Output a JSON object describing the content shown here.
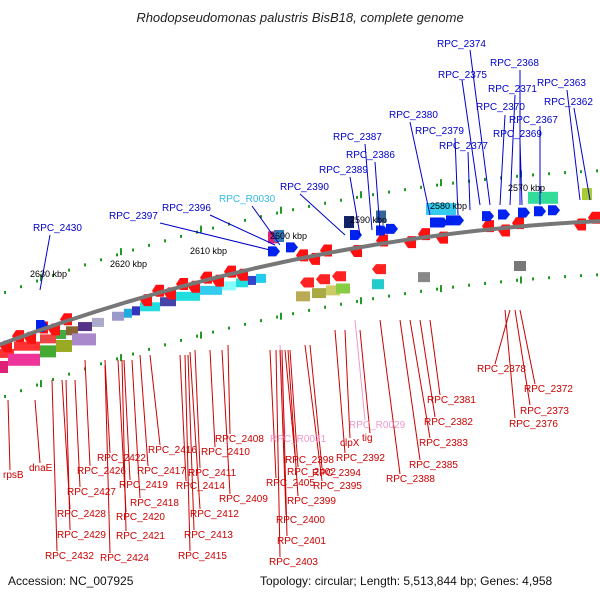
{
  "title": "Rhodopseudomonas palustris BisB18, complete genome",
  "footer": {
    "accession": "Accession: NC_007925",
    "stats": "Topology: circular; Length: 5,513,844 bp; Genes: 4,958"
  },
  "colors": {
    "forward_label": "#0000cc",
    "reverse_label": "#cc0000",
    "rna_label": "#33bbee",
    "pink_label": "#ee99cc",
    "backbone": "#777777",
    "tick": "#229922"
  },
  "kbp_ticks": [
    "2570 kbp",
    "2580 kbp",
    "2590 kbp",
    "2600 kbp",
    "2610 kbp",
    "2620 kbp",
    "2630 kbp"
  ],
  "labels_top": [
    "RPC_2374",
    "RPC_2368",
    "RPC_2375",
    "RPC_2363",
    "RPC_2371",
    "RPC_2362",
    "RPC_2370",
    "RPC_2367",
    "RPC_2380",
    "RPC_2379",
    "RPC_2369",
    "RPC_2387",
    "RPC_2377",
    "RPC_2386",
    "RPC_2389",
    "RPC_2390",
    "RPC_R0030",
    "RPC_2396",
    "RPC_2397",
    "RPC_2430"
  ],
  "labels_bottom": [
    "RPC_2378",
    "RPC_2372",
    "RPC_2373",
    "RPC_2376",
    "RPC_2381",
    "RPC_2382",
    "RPC_2383",
    "RPC_R0029",
    "RPC_2385",
    "tig",
    "clpX",
    "RPC_2392",
    "RPC_2388",
    "RPC_R0031",
    "RPC_2408",
    "RPC_2398",
    "RPC_2394",
    "RPC_2410",
    "RPC_2402",
    "RPC_2395",
    "RPC_2416",
    "RPC_2411",
    "RPC_2405",
    "RPC_2399",
    "RPC_2422",
    "RPC_2417",
    "RPC_2414",
    "RPC_2409",
    "RPC_2426",
    "RPC_2419",
    "RPC_2418",
    "RPC_2412",
    "RPC_2400",
    "rpsB",
    "dnaE",
    "RPC_2427",
    "RPC_2428",
    "RPC_2420",
    "RPC_2401",
    "RPC_2429",
    "RPC_2421",
    "RPC_2413",
    "RPC_2415",
    "RPC_2403",
    "RPC_2432",
    "RPC_2424"
  ]
}
